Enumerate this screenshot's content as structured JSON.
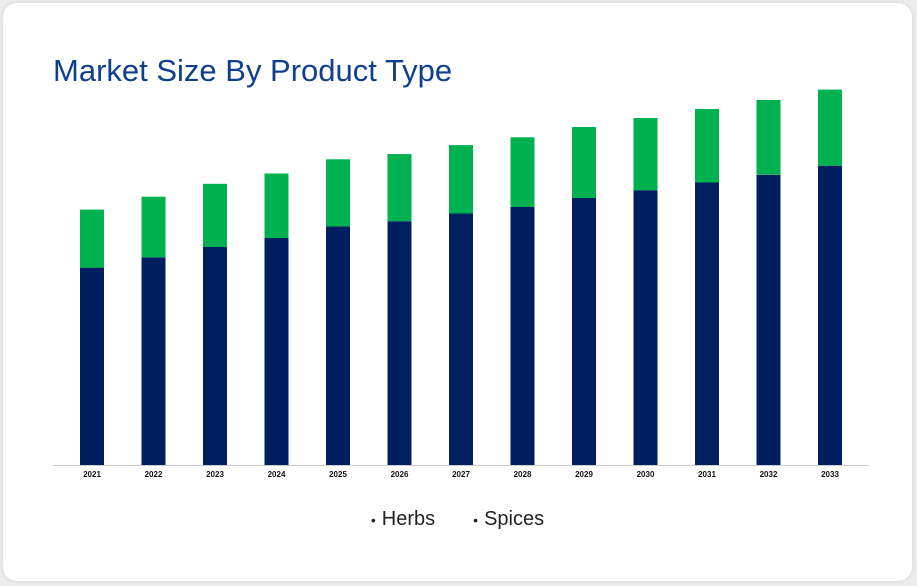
{
  "title": "Market Size By Product Type",
  "colors": {
    "Herbs": "#001f60",
    "Spices": "#00b150",
    "title": "#0f3f8f",
    "axis": "#cccccc"
  },
  "chart_data": {
    "type": "bar",
    "stacked": true,
    "title": "Market Size By Product Type",
    "xlabel": "",
    "ylabel": "",
    "categories": [
      "2021",
      "2022",
      "2023",
      "2024",
      "2025",
      "2026",
      "2027",
      "2028",
      "2029",
      "2030",
      "2031",
      "2032",
      "2033"
    ],
    "series": [
      {
        "name": "Herbs",
        "values": [
          153,
          161,
          169,
          176,
          185,
          189,
          195,
          200,
          207,
          213,
          219,
          225,
          232
        ]
      },
      {
        "name": "Spices",
        "values": [
          45,
          47,
          49,
          50,
          52,
          52,
          53,
          54,
          55,
          56,
          57,
          58,
          59
        ]
      }
    ],
    "ylim": [
      0,
      300
    ],
    "grid": false,
    "legend_position": "bottom-center"
  },
  "legend": {
    "items": [
      "Herbs",
      "Spices"
    ]
  }
}
